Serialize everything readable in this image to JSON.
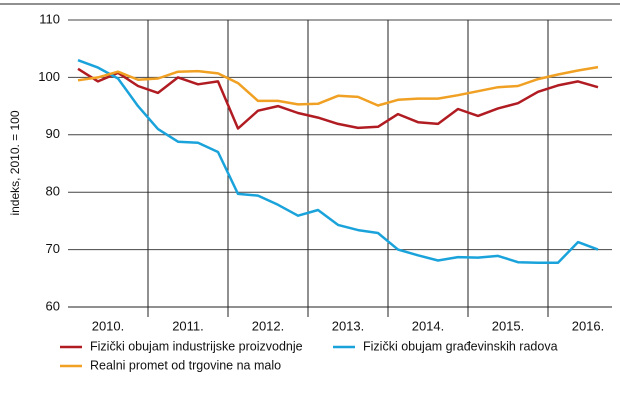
{
  "chart_data": {
    "type": "line",
    "y_label": "indeks, 2010. = 100",
    "x": [
      2010.125,
      2010.375,
      2010.625,
      2010.875,
      2011.125,
      2011.375,
      2011.625,
      2011.875,
      2012.125,
      2012.375,
      2012.625,
      2012.875,
      2013.125,
      2013.375,
      2013.625,
      2013.875,
      2014.125,
      2014.375,
      2014.625,
      2014.875,
      2015.125,
      2015.375,
      2015.625,
      2015.875,
      2016.125,
      2016.375,
      2016.625
    ],
    "xlim": [
      2010,
      2016.8
    ],
    "xticks": [
      {
        "value": 2010.5,
        "label": "2010."
      },
      {
        "value": 2011.5,
        "label": "2011."
      },
      {
        "value": 2012.5,
        "label": "2012."
      },
      {
        "value": 2013.5,
        "label": "2013."
      },
      {
        "value": 2014.5,
        "label": "2014."
      },
      {
        "value": 2015.5,
        "label": "2015."
      },
      {
        "value": 2016.5,
        "label": "2016."
      }
    ],
    "ylim": [
      60,
      110
    ],
    "yticks": [
      60,
      70,
      80,
      90,
      100,
      110
    ],
    "grid": true,
    "series": [
      {
        "name": "Fizički obujam industrijske proizvodnje",
        "color": "#b01c22",
        "values": [
          101.5,
          99.3,
          100.8,
          98.5,
          97.3,
          100,
          98.8,
          99.3,
          91.1,
          94.2,
          95,
          93.8,
          93,
          91.9,
          91.2,
          91.4,
          93.6,
          92.2,
          91.9,
          94.5,
          93.3,
          94.6,
          95.5,
          97.5,
          98.6,
          99.3,
          98.3
        ]
      },
      {
        "name": "Fizički obujam građevinskih radova",
        "color": "#1aa3db",
        "values": [
          103,
          101.7,
          99.8,
          95,
          91,
          88.8,
          88.6,
          87,
          79.7,
          79.4,
          77.8,
          75.9,
          76.9,
          74.3,
          73.4,
          72.9,
          70,
          69,
          68.1,
          68.7,
          68.6,
          68.9,
          67.8,
          67.7,
          67.7,
          71.3,
          70
        ]
      },
      {
        "name": "Realni promet od trgovine na malo",
        "color": "#f0a023",
        "values": [
          99.5,
          100,
          101,
          99.6,
          99.8,
          101,
          101.1,
          100.7,
          99,
          95.9,
          95.9,
          95.3,
          95.4,
          96.8,
          96.6,
          95.1,
          96.1,
          96.3,
          96.3,
          96.9,
          97.6,
          98.3,
          98.5,
          99.7,
          100.5,
          101.2,
          101.8
        ]
      }
    ]
  }
}
